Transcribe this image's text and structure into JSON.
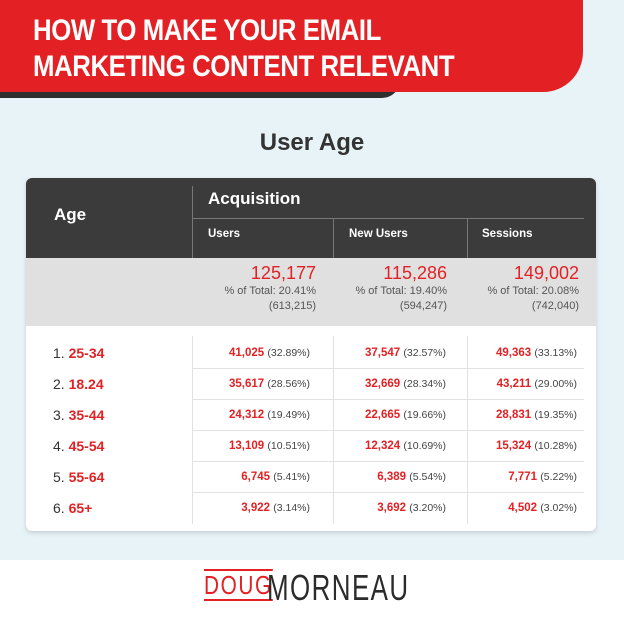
{
  "banner": {
    "title_line1": "HOW TO MAKE YOUR EMAIL",
    "title_line2": "MARKETING CONTENT RELEVANT"
  },
  "section_title": "User Age",
  "table": {
    "age_header": "Age",
    "group_header": "Acquisition",
    "columns": [
      "Users",
      "New Users",
      "Sessions"
    ],
    "totals": [
      {
        "value": "125,177",
        "pct": "% of Total: 20.41%",
        "base": "(613,215)"
      },
      {
        "value": "115,286",
        "pct": "% of Total: 19.40%",
        "base": "(594,247)"
      },
      {
        "value": "149,002",
        "pct": "% of Total: 20.08%",
        "base": "(742,040)"
      }
    ],
    "rows": [
      {
        "rank": "1.",
        "age": "25-34",
        "cells": [
          {
            "v": "41,025",
            "p": "(32.89%)"
          },
          {
            "v": "37,547",
            "p": "(32.57%)"
          },
          {
            "v": "49,363",
            "p": "(33.13%)"
          }
        ]
      },
      {
        "rank": "2.",
        "age": "18.24",
        "cells": [
          {
            "v": "35,617",
            "p": "(28.56%)"
          },
          {
            "v": "32,669",
            "p": "(28.34%)"
          },
          {
            "v": "43,211",
            "p": "(29.00%)"
          }
        ]
      },
      {
        "rank": "3.",
        "age": "35-44",
        "cells": [
          {
            "v": "24,312",
            "p": "(19.49%)"
          },
          {
            "v": "22,665",
            "p": "(19.66%)"
          },
          {
            "v": "28,831",
            "p": "(19.35%)"
          }
        ]
      },
      {
        "rank": "4.",
        "age": "45-54",
        "cells": [
          {
            "v": "13,109",
            "p": "(10.51%)"
          },
          {
            "v": "12,324",
            "p": "(10.69%)"
          },
          {
            "v": "15,324",
            "p": "(10.28%)"
          }
        ]
      },
      {
        "rank": "5.",
        "age": "55-64",
        "cells": [
          {
            "v": "6,745",
            "p": "(5.41%)"
          },
          {
            "v": "6,389",
            "p": "(5.54%)"
          },
          {
            "v": "7,771",
            "p": "(5.22%)"
          }
        ]
      },
      {
        "rank": "6.",
        "age": "65+",
        "cells": [
          {
            "v": "3,922",
            "p": "(3.14%)"
          },
          {
            "v": "3,692",
            "p": "(3.20%)"
          },
          {
            "v": "4,502",
            "p": "(3.02%)"
          }
        ]
      }
    ]
  },
  "footer": {
    "logo_part1": "DOUG",
    "logo_part2": "MORNEAU"
  },
  "colors": {
    "accent": "#e32124",
    "header_dark": "#3b3b3b",
    "background": "#e8f3f7"
  }
}
